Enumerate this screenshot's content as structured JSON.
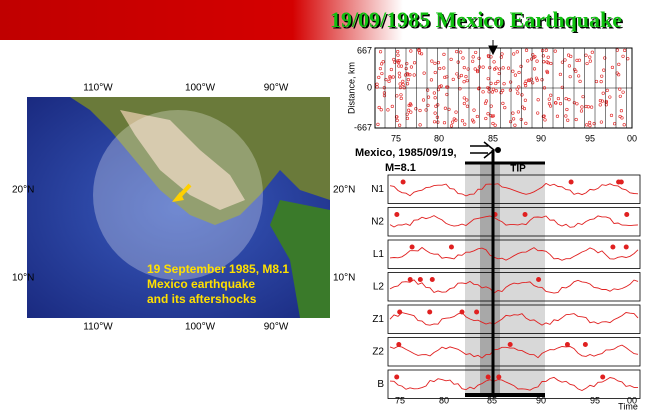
{
  "title": "19/09/1985 Mexico Earthquake",
  "map": {
    "lon_labels": [
      "110°W",
      "100°W",
      "90°W"
    ],
    "lat_labels": [
      "20°N",
      "10°N"
    ],
    "caption": [
      "19 September 1985, M8.1",
      "Mexico earthquake",
      "and its aftershocks"
    ]
  },
  "distance_panel": {
    "axis_label": "Distance, km",
    "yticks": [
      "667",
      "0",
      "-667"
    ],
    "xticks": [
      "75",
      "80",
      "85",
      "90",
      "95",
      "00"
    ]
  },
  "event_label": [
    "Mexico, 1985/09/19,",
    "M=8.1"
  ],
  "tip_label": "TIP",
  "rows": [
    "N1",
    "N2",
    "L1",
    "L2",
    "Z1",
    "Z2",
    "B"
  ],
  "time_axis": {
    "ticks": [
      "75",
      "80",
      "85",
      "90",
      "95",
      "00"
    ],
    "label": "Time"
  }
}
